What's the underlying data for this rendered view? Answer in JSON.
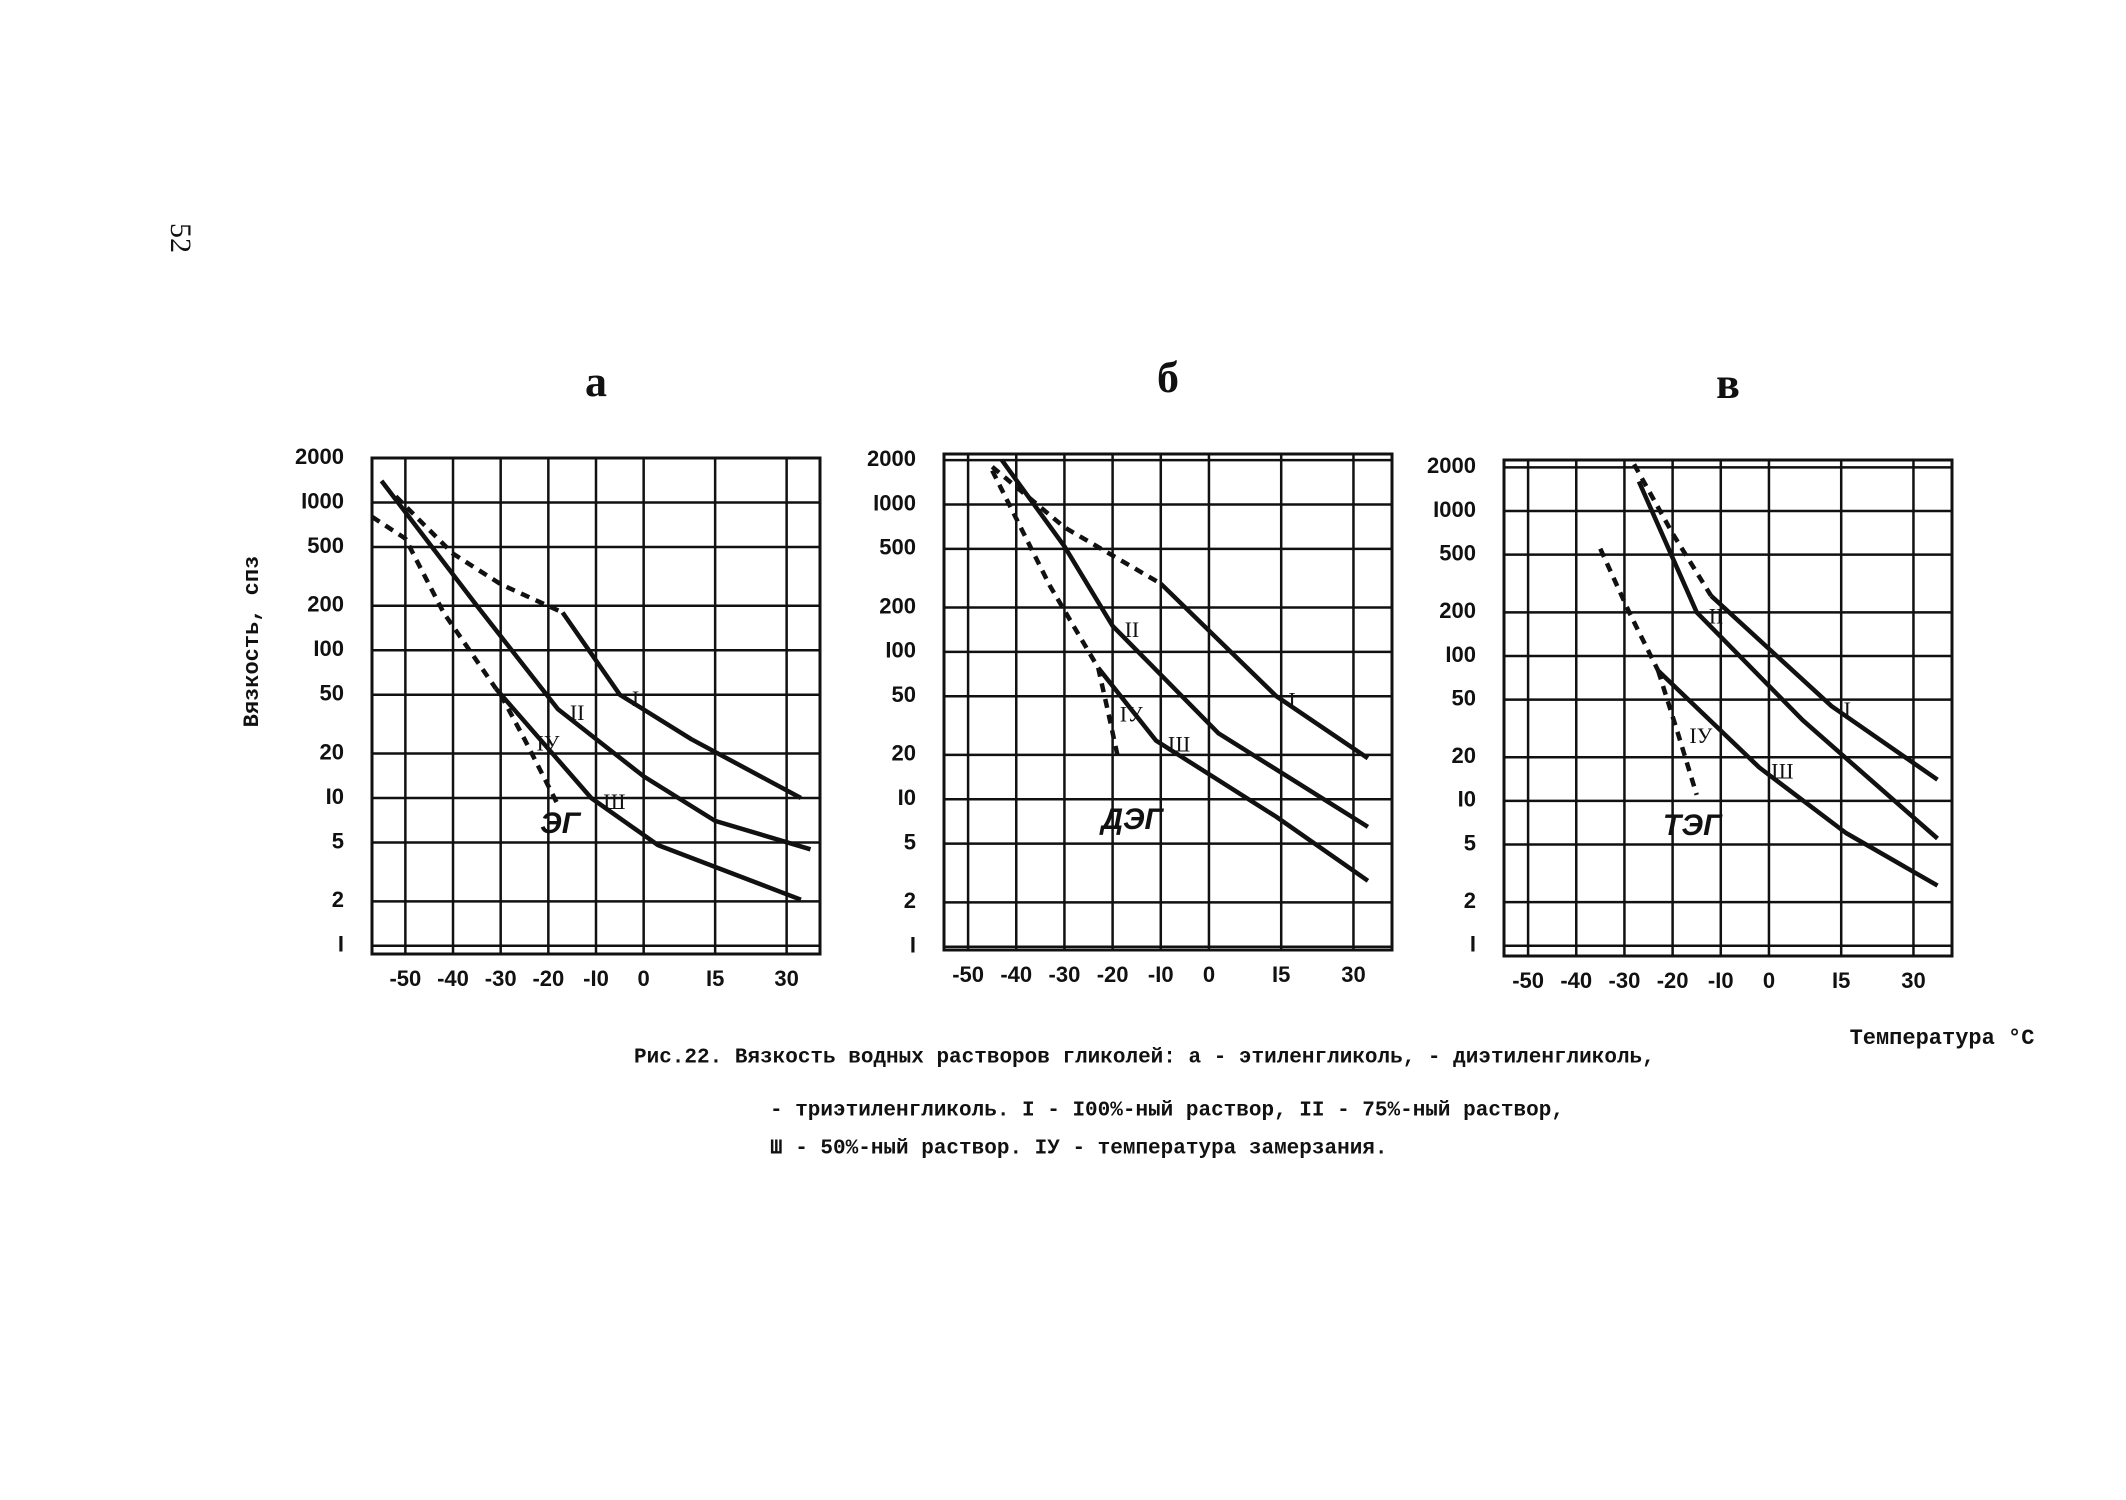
{
  "page_number": "52",
  "caption": [
    "Рис.22. Вязкость водных растворов гликолей: а - этиленгликоль,   - диэтиленгликоль,",
    "- триэтиленгликоль.  I - I00%-ный раствор, II - 75%-ный раствор,",
    "Ш - 50%-ный раствор. IУ - температура замерзания."
  ],
  "chart_data": [
    {
      "type": "line",
      "title": "а",
      "label": "ЭГ",
      "y_label": "Вязкость, спз",
      "log_y": true,
      "grid": true,
      "xlim": [
        -57,
        37
      ],
      "ylim": [
        0.88,
        2000
      ],
      "xticks": [
        -50,
        -40,
        -30,
        -20,
        {
          "value": -10,
          "label": "-I0"
        },
        0,
        {
          "value": 15,
          "label": "I5"
        },
        30
      ],
      "yticks": [
        {
          "value": 1,
          "label": "I"
        },
        2,
        5,
        {
          "value": 10,
          "label": "I0"
        },
        20,
        50,
        {
          "value": 100,
          "label": "I00"
        },
        200,
        500,
        {
          "value": 1000,
          "label": "I000"
        },
        2000
      ],
      "series": [
        {
          "color": "#111111",
          "dash": true,
          "x": [
            -52,
            -40,
            -30,
            -17
          ],
          "values": [
            1100,
            450,
            280,
            180
          ]
        },
        {
          "name": "I",
          "color": "#111111",
          "x": [
            -17,
            -5,
            10,
            33
          ],
          "values": [
            180,
            50,
            25,
            10
          ]
        },
        {
          "name": "II",
          "color": "#111111",
          "x": [
            -55,
            -35,
            -18,
            0,
            15,
            35
          ],
          "values": [
            1400,
            200,
            40,
            14,
            7,
            4.5
          ]
        },
        {
          "color": "#111111",
          "dash": true,
          "x": [
            -57,
            -50,
            -42,
            -31
          ],
          "values": [
            800,
            570,
            180,
            55
          ]
        },
        {
          "name": "Ш",
          "color": "#111111",
          "x": [
            -31,
            -11,
            3,
            33
          ],
          "values": [
            55,
            10,
            4.8,
            2.05
          ]
        },
        {
          "name": "IУ",
          "color": "#111111",
          "dash": true,
          "x": [
            -30,
            -25,
            -18
          ],
          "values": [
            50,
            25,
            9
          ]
        }
      ]
    },
    {
      "type": "line",
      "title": "б",
      "label": "ДЭГ",
      "log_y": true,
      "grid": true,
      "xlim": [
        -55,
        38
      ],
      "ylim": [
        0.95,
        2200
      ],
      "xticks": [
        -50,
        -40,
        -30,
        -20,
        {
          "value": -10,
          "label": "-I0"
        },
        0,
        {
          "value": 15,
          "label": "I5"
        },
        30
      ],
      "yticks": [
        {
          "value": 1,
          "label": "I"
        },
        2,
        5,
        {
          "value": 10,
          "label": "I0"
        },
        20,
        50,
        {
          "value": 100,
          "label": "I00"
        },
        200,
        500,
        {
          "value": 1000,
          "label": "I000"
        },
        2000
      ],
      "series": [
        {
          "color": "#111111",
          "dash": true,
          "x": [
            -45,
            -30,
            -10
          ],
          "values": [
            1800,
            700,
            290
          ]
        },
        {
          "name": "I",
          "color": "#111111",
          "x": [
            -10,
            14,
            33
          ],
          "values": [
            290,
            50,
            19
          ]
        },
        {
          "name": "II",
          "color": "#111111",
          "x": [
            -43,
            -30,
            -20,
            2,
            33
          ],
          "values": [
            2000,
            520,
            150,
            28,
            6.5
          ]
        },
        {
          "color": "#111111",
          "dash": true,
          "x": [
            -45,
            -33,
            -23
          ],
          "values": [
            1700,
            280,
            78
          ]
        },
        {
          "name": "Ш",
          "color": "#111111",
          "x": [
            -23,
            -11,
            14,
            33
          ],
          "values": [
            78,
            25,
            7.6,
            2.8
          ]
        },
        {
          "name": "IУ",
          "color": "#111111",
          "dash": true,
          "x": [
            -23,
            -21,
            -19
          ],
          "values": [
            78,
            40,
            20
          ]
        }
      ]
    },
    {
      "type": "line",
      "title": "в",
      "label": "ТЭГ",
      "x_label": "Температура °C",
      "log_y": true,
      "grid": true,
      "xlim": [
        -55,
        38
      ],
      "ylim": [
        0.85,
        2250
      ],
      "xticks": [
        -50,
        -40,
        -30,
        -20,
        {
          "value": -10,
          "label": "-I0"
        },
        0,
        {
          "value": 15,
          "label": "I5"
        },
        30
      ],
      "yticks": [
        {
          "value": 1,
          "label": "I"
        },
        2,
        5,
        {
          "value": 10,
          "label": "I0"
        },
        20,
        50,
        {
          "value": 100,
          "label": "I00"
        },
        200,
        500,
        {
          "value": 1000,
          "label": "I000"
        },
        2000
      ],
      "series": [
        {
          "color": "#111111",
          "dash": true,
          "x": [
            -28,
            -20,
            -12
          ],
          "values": [
            2100,
            700,
            260
          ]
        },
        {
          "name": "I",
          "color": "#111111",
          "x": [
            -12,
            13,
            35
          ],
          "values": [
            260,
            45,
            14
          ]
        },
        {
          "name": "II",
          "color": "#111111",
          "x": [
            -27,
            -15,
            7,
            35
          ],
          "values": [
            1600,
            200,
            36,
            5.5
          ]
        },
        {
          "color": "#111111",
          "dash": true,
          "x": [
            -35,
            -29,
            -23
          ],
          "values": [
            550,
            200,
            79
          ]
        },
        {
          "name": "Ш",
          "color": "#111111",
          "x": [
            -23,
            -2,
            16,
            35
          ],
          "values": [
            79,
            17,
            6,
            2.6
          ]
        },
        {
          "name": "IУ",
          "color": "#111111",
          "dash": true,
          "x": [
            -23,
            -19,
            -15
          ],
          "values": [
            79,
            30,
            11
          ]
        }
      ]
    }
  ]
}
